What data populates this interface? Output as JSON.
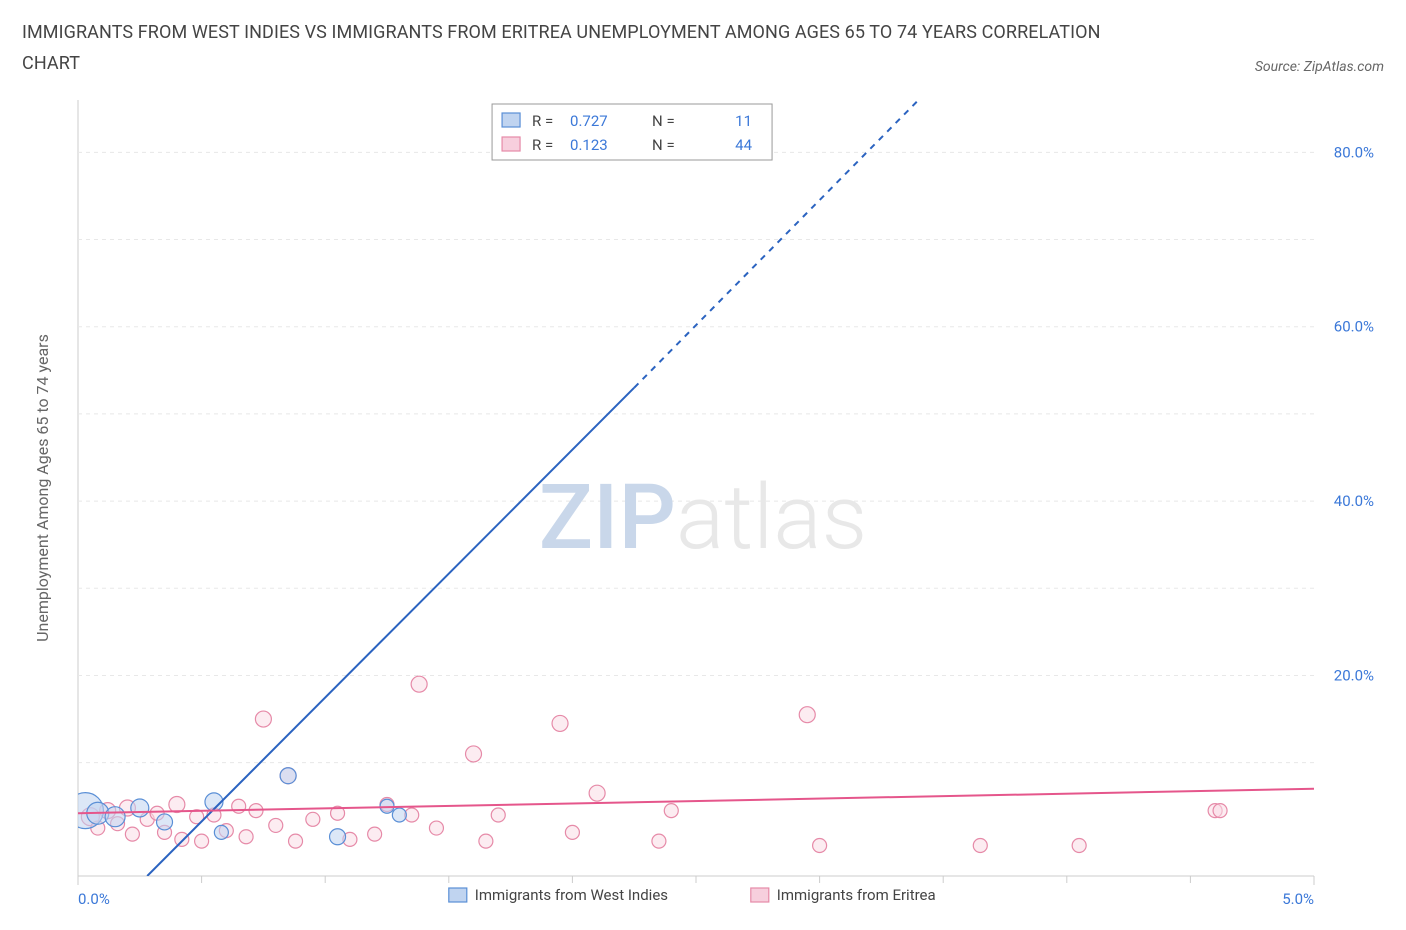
{
  "title": "IMMIGRANTS FROM WEST INDIES VS IMMIGRANTS FROM ERITREA UNEMPLOYMENT AMONG AGES 65 TO 74 YEARS CORRELATION CHART",
  "source": "Source: ZipAtlas.com",
  "watermark": {
    "prefix": "ZIP",
    "suffix": "atlas"
  },
  "chart": {
    "type": "scatter",
    "background_color": "#ffffff",
    "grid_color": "#e8e8e8",
    "axis_color": "#cccccc",
    "tick_label_color": "#3b78d8",
    "ylabel": "Unemployment Among Ages 65 to 74 years",
    "ylabel_color": "#666666",
    "ylabel_fontsize": 16,
    "xlim": [
      0,
      5
    ],
    "ylim": [
      -3,
      86
    ],
    "xtick_labels": [
      {
        "v": 0.0,
        "label": "0.0%"
      },
      {
        "v": 5.0,
        "label": "5.0%"
      }
    ],
    "xtick_minor": [
      0.5,
      1.0,
      1.5,
      2.0,
      2.5,
      3.0,
      3.5,
      4.0,
      4.5
    ],
    "ytick_labels": [
      {
        "v": 20,
        "label": "20.0%"
      },
      {
        "v": 40,
        "label": "40.0%"
      },
      {
        "v": 60,
        "label": "60.0%"
      },
      {
        "v": 80,
        "label": "80.0%"
      }
    ],
    "ytick_minor": [
      10,
      30,
      50,
      70
    ],
    "stats_box": {
      "border_color": "#999999",
      "bg": "#ffffff",
      "rows": [
        {
          "swatch_fill": "#c0d4f0",
          "swatch_stroke": "#5a8fd6",
          "r": "0.727",
          "n": "11"
        },
        {
          "swatch_fill": "#f7cfdd",
          "swatch_stroke": "#e68aa8",
          "r": "0.123",
          "n": "44"
        }
      ],
      "label_color": "#444444",
      "value_color": "#3b78d8"
    },
    "legend": [
      {
        "swatch_fill": "#c0d4f0",
        "swatch_stroke": "#5a8fd6",
        "label": "Immigrants from West Indies"
      },
      {
        "swatch_fill": "#f7cfdd",
        "swatch_stroke": "#e68aa8",
        "label": "Immigrants from Eritrea"
      }
    ],
    "series": [
      {
        "name": "west_indies",
        "point_fill": "#c0d4f0",
        "point_stroke": "#5a8fd6",
        "point_stroke_width": 1.2,
        "trend_color": "#2b63c0",
        "trend_width": 2,
        "trend_solid": {
          "x1": 0.28,
          "y1": -3,
          "x2": 2.25,
          "y2": 53
        },
        "trend_dashed": {
          "x1": 2.25,
          "y1": 53,
          "x2": 3.4,
          "y2": 86
        },
        "points": [
          {
            "x": 0.03,
            "y": 4.5,
            "r": 18
          },
          {
            "x": 0.08,
            "y": 4.2,
            "r": 11
          },
          {
            "x": 0.15,
            "y": 3.8,
            "r": 10
          },
          {
            "x": 0.25,
            "y": 4.8,
            "r": 9
          },
          {
            "x": 0.35,
            "y": 3.2,
            "r": 8
          },
          {
            "x": 0.55,
            "y": 5.5,
            "r": 9
          },
          {
            "x": 0.58,
            "y": 2.0,
            "r": 7
          },
          {
            "x": 0.85,
            "y": 8.5,
            "r": 8
          },
          {
            "x": 1.05,
            "y": 1.5,
            "r": 8
          },
          {
            "x": 1.25,
            "y": 5.0,
            "r": 7
          },
          {
            "x": 1.3,
            "y": 4.0,
            "r": 7
          }
        ]
      },
      {
        "name": "eritrea",
        "point_fill": "#f9dce6",
        "point_stroke": "#e68aa8",
        "point_stroke_width": 1.2,
        "trend_color": "#e5568b",
        "trend_width": 2,
        "trend_solid": {
          "x1": 0.0,
          "y1": 4.2,
          "x2": 5.0,
          "y2": 7.0
        },
        "points": [
          {
            "x": 0.05,
            "y": 3.8,
            "r": 9
          },
          {
            "x": 0.08,
            "y": 2.5,
            "r": 7
          },
          {
            "x": 0.12,
            "y": 4.5,
            "r": 8
          },
          {
            "x": 0.16,
            "y": 3.0,
            "r": 7
          },
          {
            "x": 0.2,
            "y": 4.8,
            "r": 8
          },
          {
            "x": 0.22,
            "y": 1.8,
            "r": 7
          },
          {
            "x": 0.28,
            "y": 3.5,
            "r": 7
          },
          {
            "x": 0.32,
            "y": 4.2,
            "r": 7
          },
          {
            "x": 0.35,
            "y": 2.0,
            "r": 7
          },
          {
            "x": 0.4,
            "y": 5.2,
            "r": 8
          },
          {
            "x": 0.42,
            "y": 1.2,
            "r": 7
          },
          {
            "x": 0.48,
            "y": 3.8,
            "r": 7
          },
          {
            "x": 0.5,
            "y": 1.0,
            "r": 7
          },
          {
            "x": 0.55,
            "y": 4.0,
            "r": 7
          },
          {
            "x": 0.6,
            "y": 2.2,
            "r": 7
          },
          {
            "x": 0.65,
            "y": 5.0,
            "r": 7
          },
          {
            "x": 0.68,
            "y": 1.5,
            "r": 7
          },
          {
            "x": 0.72,
            "y": 4.5,
            "r": 7
          },
          {
            "x": 0.75,
            "y": 15.0,
            "r": 8
          },
          {
            "x": 0.8,
            "y": 2.8,
            "r": 7
          },
          {
            "x": 0.85,
            "y": 8.5,
            "r": 8
          },
          {
            "x": 0.88,
            "y": 1.0,
            "r": 7
          },
          {
            "x": 0.95,
            "y": 3.5,
            "r": 7
          },
          {
            "x": 1.05,
            "y": 4.2,
            "r": 7
          },
          {
            "x": 1.1,
            "y": 1.2,
            "r": 7
          },
          {
            "x": 1.2,
            "y": 1.8,
            "r": 7
          },
          {
            "x": 1.25,
            "y": 5.2,
            "r": 7
          },
          {
            "x": 1.35,
            "y": 4.0,
            "r": 7
          },
          {
            "x": 1.38,
            "y": 19.0,
            "r": 8
          },
          {
            "x": 1.45,
            "y": 2.5,
            "r": 7
          },
          {
            "x": 1.6,
            "y": 11.0,
            "r": 8
          },
          {
            "x": 1.65,
            "y": 1.0,
            "r": 7
          },
          {
            "x": 1.7,
            "y": 4.0,
            "r": 7
          },
          {
            "x": 1.95,
            "y": 14.5,
            "r": 8
          },
          {
            "x": 2.0,
            "y": 2.0,
            "r": 7
          },
          {
            "x": 2.1,
            "y": 6.5,
            "r": 8
          },
          {
            "x": 2.35,
            "y": 1.0,
            "r": 7
          },
          {
            "x": 2.4,
            "y": 4.5,
            "r": 7
          },
          {
            "x": 2.95,
            "y": 15.5,
            "r": 8
          },
          {
            "x": 3.0,
            "y": 0.5,
            "r": 7
          },
          {
            "x": 3.65,
            "y": 0.5,
            "r": 7
          },
          {
            "x": 4.05,
            "y": 0.5,
            "r": 7
          },
          {
            "x": 4.6,
            "y": 4.5,
            "r": 7
          },
          {
            "x": 4.62,
            "y": 4.5,
            "r": 7
          }
        ]
      }
    ]
  }
}
